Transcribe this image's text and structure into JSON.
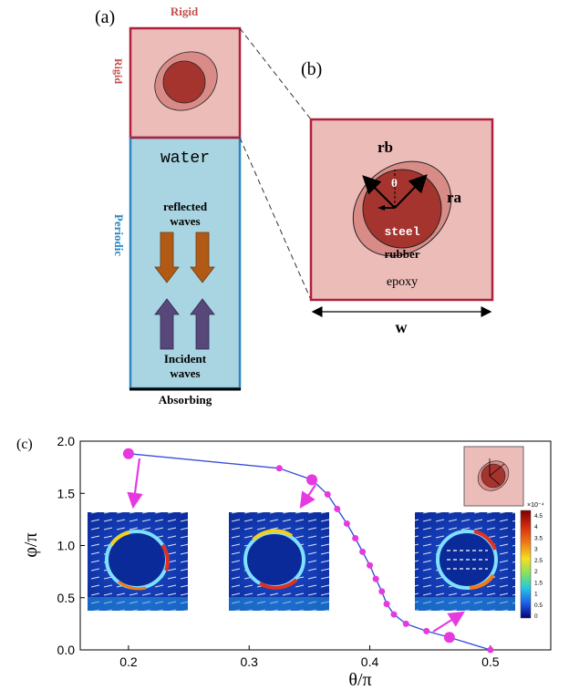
{
  "panels": {
    "a": {
      "label": "(a)",
      "top_boundary": "Rigid",
      "side_boundary_top": "Rigid",
      "side_boundary_bottom": "Periodic",
      "bottom_boundary": "Absorbing",
      "medium": "water",
      "reflected_label_1": "reflected",
      "reflected_label_2": "waves",
      "incident_label_1": "Incident",
      "incident_label_2": "waves"
    },
    "b": {
      "label": "(b)",
      "outer_radius": "rb",
      "inner_radius": "ra",
      "angle": "θ",
      "core": "steel",
      "coating": "rubber",
      "matrix": "epoxy",
      "width": "w"
    },
    "c": {
      "label": "(c)",
      "colorbar_exponent": "×10⁻⁴",
      "colorbar_ticks": [
        "4.5",
        "4",
        "3.5",
        "3",
        "2.5",
        "2",
        "1.5",
        "1",
        "0.5",
        "0"
      ]
    }
  },
  "colors": {
    "rigid": "#b0203c",
    "periodic": "#2e86c1",
    "water": "#a9d4e1",
    "epoxy": "#ecbcb8",
    "rubber": "#d98c87",
    "steel": "#a5342f",
    "reflected_arrow": "#b05a15",
    "incident_arrow": "#58487a",
    "curve_line": "#3a4fd8",
    "curve_point": "#e639e0"
  },
  "chart_data": {
    "type": "line",
    "xlabel": "θ/π",
    "ylabel": "φ/π",
    "xlim": [
      0.16,
      0.55
    ],
    "ylim": [
      0.0,
      2.0
    ],
    "xticks": [
      "0.2",
      "0.3",
      "0.4",
      "0.5"
    ],
    "yticks": [
      "0.0",
      "0.5",
      "1.0",
      "1.5",
      "2.0"
    ],
    "series": [
      {
        "x": [
          0.2,
          0.325,
          0.352,
          0.365,
          0.373,
          0.381,
          0.388,
          0.394,
          0.4,
          0.405,
          0.41,
          0.414,
          0.42,
          0.43,
          0.447,
          0.466,
          0.5
        ],
        "y": [
          1.88,
          1.74,
          1.63,
          1.49,
          1.35,
          1.21,
          1.07,
          0.94,
          0.81,
          0.68,
          0.56,
          0.44,
          0.34,
          0.25,
          0.18,
          0.12,
          0.0
        ]
      }
    ],
    "highlight_points": [
      {
        "x": 0.2,
        "y": 1.88
      },
      {
        "x": 0.352,
        "y": 1.63
      },
      {
        "x": 0.466,
        "y": 0.12
      }
    ]
  }
}
